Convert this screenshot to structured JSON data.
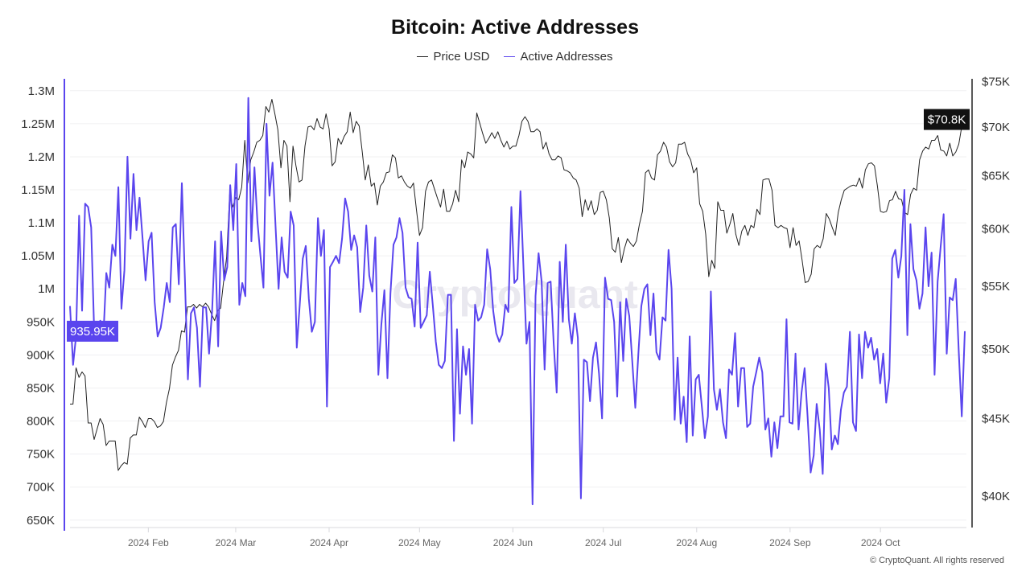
{
  "colors": {
    "price": "#222222",
    "active": "#5a45ee",
    "grid": "#f0f0f2",
    "watermark": "#e9e8ef"
  },
  "watermark": "CryptoQuant",
  "footer": "© CryptoQuant. All rights reserved",
  "chart_data": {
    "type": "line",
    "title": "Bitcoin: Active Addresses",
    "legend_position": "top-center",
    "grid": true,
    "x_range": [
      "2024-01-06",
      "2024-10-29"
    ],
    "x_interval": "daily",
    "x_tick_labels": [
      "2024 Feb",
      "2024 Mar",
      "2024 Apr",
      "2024 May",
      "2024 Jun",
      "2024 Jul",
      "2024 Aug",
      "2024 Sep",
      "2024 Oct"
    ],
    "left_axis": {
      "scale": "linear",
      "range_k": [
        640,
        1318
      ],
      "tick_values_k": [
        650,
        700,
        750,
        800,
        850,
        900,
        950,
        1000,
        1050,
        1100,
        1150,
        1200,
        1250,
        1300
      ],
      "tick_labels": [
        "650K",
        "700K",
        "750K",
        "800K",
        "850K",
        "900K",
        "950K",
        "1M",
        "1.05M",
        "1.1M",
        "1.15M",
        "1.2M",
        "1.25M",
        "1.3M"
      ]
    },
    "right_axis": {
      "scale": "log",
      "range_k": [
        38.2,
        75.3
      ],
      "tick_values_k": [
        40,
        45,
        50,
        55,
        60,
        65,
        70,
        75
      ],
      "tick_labels": [
        "$40K",
        "$45K",
        "$50K",
        "$55K",
        "$60K",
        "$65K",
        "$70K",
        "$75K"
      ]
    },
    "current_labels": {
      "active": "935.95K",
      "price": "$70.8K"
    },
    "series": [
      {
        "name": "Price USD",
        "axis": "right",
        "values_k": [
          46.0,
          46.0,
          48.6,
          47.9,
          48.3,
          48.0,
          44.7,
          44.7,
          43.6,
          44.3,
          45.0,
          44.6,
          43.2,
          43.5,
          43.5,
          43.5,
          41.6,
          41.9,
          42.1,
          42.0,
          43.7,
          43.9,
          43.9,
          45.1,
          44.8,
          44.4,
          45.0,
          45.0,
          44.8,
          44.4,
          44.5,
          44.8,
          46.1,
          47.1,
          48.8,
          49.4,
          49.9,
          51.4,
          51.3,
          53.3,
          53.3,
          53.5,
          53.2,
          53.5,
          53.3,
          53.6,
          53.3,
          52.7,
          52.2,
          53.0,
          53.2,
          55.4,
          57.5,
          63.2,
          62.0,
          62.9,
          62.7,
          63.9,
          68.6,
          64.3,
          66.6,
          67.4,
          68.4,
          68.6,
          69.1,
          72.2,
          71.6,
          73.0,
          71.4,
          69.7,
          65.8,
          68.6,
          68.0,
          62.5,
          68.0,
          66.0,
          64.4,
          64.6,
          68.0,
          70.0,
          70.1,
          69.7,
          70.9,
          70.0,
          69.8,
          71.4,
          69.8,
          66.0,
          66.4,
          68.8,
          68.2,
          69.0,
          69.5,
          71.6,
          69.4,
          70.6,
          70.1,
          67.4,
          64.6,
          66.1,
          64.0,
          64.3,
          62.2,
          64.0,
          64.4,
          65.3,
          65.4,
          67.1,
          66.8,
          64.8,
          65.0,
          64.4,
          64.0,
          63.8,
          64.3,
          61.7,
          59.4,
          60.1,
          63.5,
          64.4,
          64.6,
          63.7,
          62.8,
          62.0,
          63.7,
          61.6,
          61.6,
          62.3,
          63.6,
          62.5,
          66.6,
          65.8,
          67.4,
          67.2,
          66.8,
          71.5,
          70.4,
          69.3,
          68.3,
          68.8,
          69.4,
          68.8,
          69.5,
          68.6,
          67.9,
          68.5,
          67.7,
          68.0,
          68.0,
          69.1,
          70.6,
          71.1,
          70.6,
          69.5,
          69.5,
          69.8,
          69.5,
          67.7,
          68.4,
          67.2,
          66.6,
          66.6,
          67.0,
          66.8,
          65.6,
          65.5,
          65.3,
          64.8,
          64.6,
          63.8,
          61.1,
          62.7,
          61.7,
          62.6,
          61.3,
          61.7,
          63.4,
          63.5,
          62.7,
          61.0,
          58.2,
          57.9,
          59.2,
          57.0,
          58.2,
          59.1,
          58.7,
          58.4,
          58.9,
          60.4,
          61.6,
          65.3,
          65.6,
          64.8,
          64.6,
          67.1,
          67.5,
          68.4,
          67.9,
          66.4,
          65.9,
          66.3,
          68.2,
          68.2,
          68.4,
          67.2,
          66.6,
          65.3,
          65.8,
          62.3,
          61.6,
          59.5,
          55.8,
          57.2,
          56.5,
          62.5,
          61.7,
          61.7,
          59.6,
          60.4,
          61.4,
          59.5,
          58.5,
          59.8,
          60.3,
          59.4,
          60.3,
          60.1,
          61.8,
          61.3,
          64.6,
          64.7,
          64.7,
          63.6,
          60.3,
          60.1,
          60.3,
          60.1,
          60.0,
          58.3,
          60.1,
          58.5,
          58.9,
          57.2,
          55.3,
          55.4,
          56.0,
          58.2,
          58.5,
          58.3,
          59.1,
          61.4,
          60.9,
          60.1,
          59.4,
          61.5,
          62.7,
          63.6,
          63.8,
          64.0,
          64.1,
          64.0,
          64.8,
          63.8,
          65.6,
          66.2,
          66.3,
          66.0,
          64.0,
          61.6,
          61.5,
          61.6,
          62.6,
          62.7,
          63.5,
          62.8,
          62.7,
          61.5,
          61.3,
          63.2,
          63.8,
          63.6,
          66.6,
          67.5,
          67.9,
          67.7,
          68.6,
          68.6,
          69.1,
          67.6,
          67.5,
          67.0,
          68.3,
          67.0,
          67.4,
          68.2,
          70.1,
          70.8
        ]
      },
      {
        "name": "Active Addresses",
        "axis": "left",
        "values_k": [
          974,
          885,
          928,
          1111,
          967,
          1129,
          1124,
          1093,
          933,
          922,
          952,
          924,
          1024,
          1002,
          1067,
          1050,
          1154,
          970,
          1028,
          1200,
          1076,
          1174,
          1089,
          1138,
          1076,
          1013,
          1072,
          1085,
          980,
          928,
          941,
          972,
          1009,
          980,
          1093,
          1098,
          1007,
          1160,
          1015,
          863,
          963,
          972,
          941,
          852,
          972,
          972,
          902,
          967,
          1072,
          913,
          1087,
          1013,
          1033,
          1157,
          1089,
          1189,
          976,
          1009,
          989,
          1289,
          1072,
          1184,
          1102,
          1050,
          1002,
          1250,
          1141,
          1191,
          1093,
          1000,
          1078,
          1026,
          1017,
          1117,
          1096,
          911,
          976,
          1046,
          1065,
          985,
          935,
          950,
          1107,
          1050,
          1089,
          822,
          1033,
          1041,
          1050,
          1039,
          1076,
          1137,
          1117,
          1059,
          1081,
          1063,
          965,
          1002,
          1096,
          1020,
          996,
          1078,
          870,
          946,
          998,
          865,
          993,
          1067,
          1078,
          1107,
          1085,
          1002,
          987,
          985,
          943,
          1070,
          941,
          950,
          960,
          1026,
          976,
          920,
          885,
          880,
          891,
          991,
          991,
          770,
          939,
          811,
          913,
          870,
          909,
          796,
          976,
          952,
          957,
          976,
          1060,
          1030,
          967,
          933,
          920,
          931,
          976,
          965,
          1124,
          1009,
          1015,
          1148,
          1033,
          917,
          950,
          674,
          989,
          1054,
          1011,
          878,
          1009,
          1011,
          917,
          843,
          1041,
          950,
          1067,
          954,
          917,
          963,
          926,
          683,
          893,
          889,
          830,
          896,
          919,
          872,
          804,
          1017,
          985,
          983,
          950,
          837,
          980,
          891,
          985,
          959,
          889,
          820,
          902,
          974,
          1000,
          1007,
          930,
          993,
          904,
          893,
          957,
          952,
          1059,
          1000,
          802,
          896,
          796,
          837,
          768,
          928,
          778,
          863,
          870,
          822,
          774,
          807,
          996,
          848,
          817,
          848,
          798,
          774,
          878,
          870,
          933,
          822,
          880,
          880,
          791,
          796,
          852,
          874,
          896,
          874,
          787,
          804,
          746,
          798,
          759,
          807,
          807,
          954,
          798,
          796,
          902,
          787,
          843,
          880,
          807,
          722,
          748,
          826,
          787,
          720,
          887,
          850,
          757,
          778,
          765,
          817,
          843,
          852,
          935,
          798,
          785,
          931,
          865,
          935,
          911,
          926,
          893,
          909,
          857,
          902,
          828,
          865,
          1046,
          1059,
          1017,
          1050,
          1150,
          930,
          1098,
          1030,
          1013,
          970,
          993,
          1093,
          1004,
          1055,
          870,
          1011,
          1063,
          1113,
          902,
          987,
          983,
          1015,
          904,
          807,
          935.95
        ]
      }
    ]
  }
}
